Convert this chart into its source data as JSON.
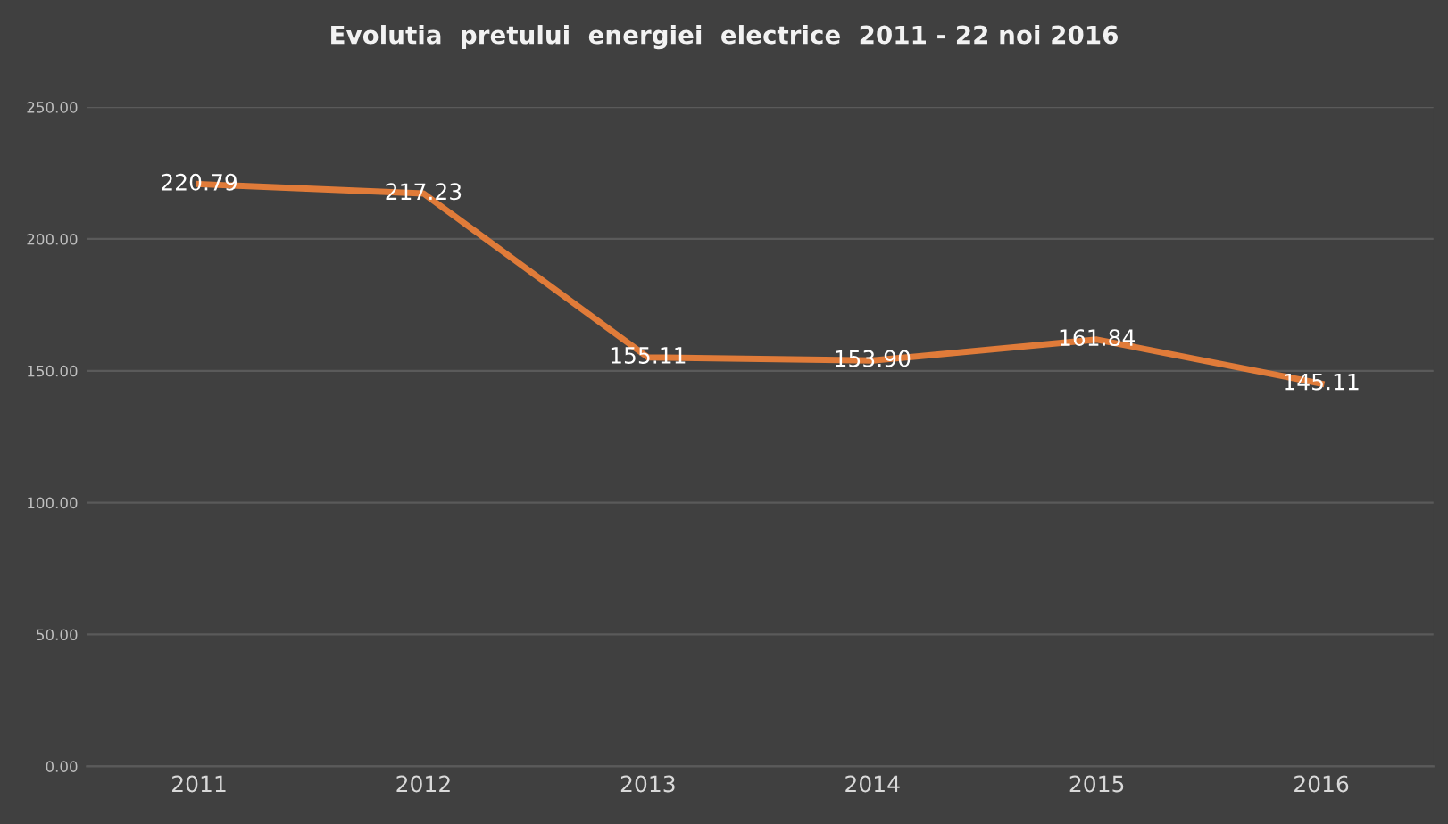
{
  "chart_data": {
    "type": "line",
    "title": "Evolutia  pretului  energiei  electrice  2011 - 22 noi 2016",
    "categories": [
      "2011",
      "2012",
      "2013",
      "2014",
      "2015",
      "2016"
    ],
    "series": [
      {
        "color": "#e07b39",
        "values": [
          220.79,
          217.23,
          155.11,
          153.9,
          161.84,
          145.11
        ]
      }
    ],
    "ylim": [
      0,
      250
    ],
    "yticks": [
      {
        "value": 0,
        "label": "0.00"
      },
      {
        "value": 50,
        "label": "50.00"
      },
      {
        "value": 100,
        "label": "100.00"
      },
      {
        "value": 150,
        "label": "150.00"
      },
      {
        "value": 200,
        "label": "200.00"
      },
      {
        "value": 250,
        "label": "250.00"
      }
    ],
    "value_labels": [
      "220.79",
      "217.23",
      "155.11",
      "153.90",
      "161.84",
      "145.11"
    ],
    "grid": "y",
    "marker": "none",
    "line_style": "solid",
    "legend": false
  }
}
